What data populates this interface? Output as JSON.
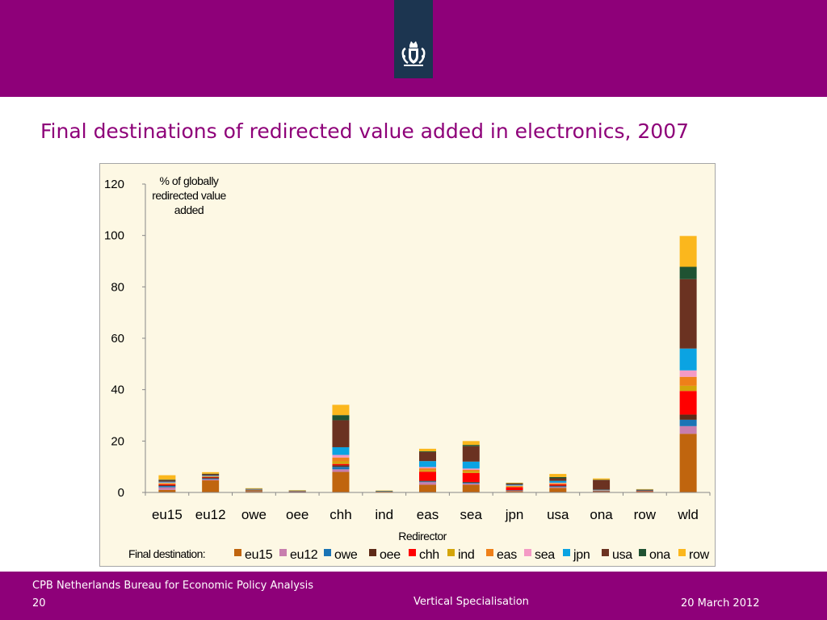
{
  "slide": {
    "title": "Final destinations of redirected value added in electronics, 2007"
  },
  "footer": {
    "organization": "CPB Netherlands Bureau for Economic Policy Analysis",
    "page_number": "20",
    "subject": "Vertical Specialisation",
    "date": "20 March 2012"
  },
  "colors": {
    "brand": "#8e0079",
    "logo_bg": "#1c3550",
    "plot_bg": "#fdf8e4"
  },
  "chart_data": {
    "type": "bar",
    "stacked": true,
    "ylabel": "% of globally redirected value added",
    "ylabel_lines": [
      "% of globally",
      "redirected value",
      "added"
    ],
    "xlabel": "Redirector",
    "legend_title": "Final destination:",
    "legend_position": "bottom",
    "ylim": [
      0,
      120
    ],
    "yticks": [
      0,
      20,
      40,
      60,
      80,
      100,
      120
    ],
    "grid": false,
    "categories": [
      "eu15",
      "eu12",
      "owe",
      "oee",
      "chh",
      "ind",
      "eas",
      "sea",
      "jpn",
      "usa",
      "ona",
      "row",
      "wld"
    ],
    "series": [
      {
        "name": "eu15",
        "color": "#c0650e",
        "values": [
          1.0,
          4.7,
          0.5,
          0.2,
          8.0,
          0.1,
          3.0,
          3.0,
          0.5,
          1.8,
          0.3,
          0.3,
          22.8
        ]
      },
      {
        "name": "eu12",
        "color": "#c87eae",
        "values": [
          1.0,
          0.4,
          0.1,
          0.05,
          1.0,
          0.05,
          1.0,
          0.5,
          0.2,
          0.3,
          0.1,
          0.1,
          3.0
        ]
      },
      {
        "name": "owe",
        "color": "#1a74b5",
        "values": [
          0.5,
          0.3,
          0.1,
          0.05,
          1.0,
          0.05,
          0.3,
          0.3,
          0.1,
          0.3,
          0.05,
          0.05,
          2.5
        ]
      },
      {
        "name": "oee",
        "color": "#5e2a17",
        "values": [
          0.3,
          0.4,
          0.1,
          0.05,
          0.6,
          0.05,
          0.3,
          0.3,
          0.1,
          0.3,
          0.1,
          0.05,
          2.0
        ]
      },
      {
        "name": "chh",
        "color": "#ff0000",
        "values": [
          0.4,
          0.2,
          0.1,
          0.05,
          0.5,
          0.05,
          3.5,
          3.5,
          1.2,
          0.5,
          0.1,
          0.05,
          9.2
        ]
      },
      {
        "name": "ind",
        "color": "#d4a50a",
        "values": [
          0.2,
          0.1,
          0.05,
          0.05,
          1.0,
          0.05,
          0.5,
          0.7,
          0.3,
          0.2,
          0.05,
          0.05,
          2.0
        ]
      },
      {
        "name": "eas",
        "color": "#ef8019",
        "values": [
          0.3,
          0.2,
          0.1,
          0.05,
          1.5,
          0.05,
          0.8,
          0.5,
          0.2,
          0.2,
          0.1,
          0.05,
          3.5
        ]
      },
      {
        "name": "sea",
        "color": "#f49ac5",
        "values": [
          0.2,
          0.1,
          0.05,
          0.05,
          1.0,
          0.05,
          0.5,
          0.5,
          0.1,
          0.2,
          0.05,
          0.05,
          2.5
        ]
      },
      {
        "name": "jpn",
        "color": "#0ba3e2",
        "values": [
          0.3,
          0.2,
          0.05,
          0.05,
          3.0,
          0.05,
          2.3,
          2.7,
          0.3,
          0.7,
          0.2,
          0.05,
          8.5
        ]
      },
      {
        "name": "usa",
        "color": "#6b3221",
        "values": [
          0.6,
          0.5,
          0.2,
          0.1,
          10.5,
          0.1,
          3.5,
          6.0,
          0.5,
          1.0,
          3.8,
          0.3,
          27.0
        ]
      },
      {
        "name": "ona",
        "color": "#1f5232",
        "values": [
          0.2,
          0.2,
          0.1,
          0.05,
          2.0,
          0.05,
          0.3,
          0.5,
          0.1,
          0.5,
          0.1,
          0.1,
          4.8
        ]
      },
      {
        "name": "row",
        "color": "#fbb71d",
        "values": [
          1.7,
          0.6,
          0.2,
          0.1,
          4.0,
          0.1,
          1.0,
          1.5,
          0.2,
          1.2,
          0.5,
          0.15,
          12.0
        ]
      }
    ]
  }
}
